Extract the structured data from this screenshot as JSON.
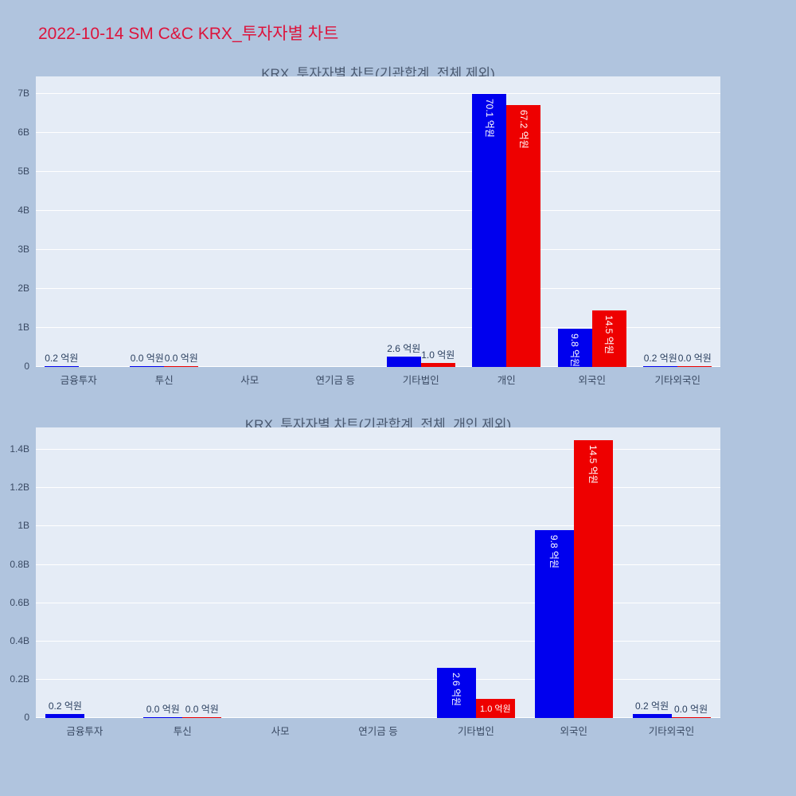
{
  "page": {
    "title": "2022-10-14 SM C&C KRX_투자자별 차트"
  },
  "colors": {
    "page_background": "#b0c4de",
    "plot_background": "#e5ecf6",
    "gridline": "#ffffff",
    "title": "#dc143c",
    "chart_title": "#4a5970",
    "axis_text": "#3a4a63",
    "bar_label_outside": "#2a3f5f",
    "bar_label_inside": "#ffffff",
    "series_blue": "#0000ee",
    "series_red": "#ee0000"
  },
  "chart_data": [
    {
      "type": "bar",
      "title": "KRX_투자자별 차트(기관합계_전체 제외)",
      "unit": "억원",
      "categories": [
        "금융투자",
        "투신",
        "사모",
        "연기금 등",
        "기타법인",
        "개인",
        "외국인",
        "기타외국인"
      ],
      "ytick_labels": [
        "0",
        "1B",
        "2B",
        "3B",
        "4B",
        "5B",
        "6B",
        "7B"
      ],
      "yticks_b": [
        0,
        1,
        2,
        3,
        4,
        5,
        6,
        7
      ],
      "ymax_b": 7.45,
      "grid": true,
      "legend": "none",
      "series": [
        {
          "name": "series-blue",
          "color": "#0000ee",
          "values_eok": [
            0.2,
            0.0,
            null,
            null,
            2.6,
            70.1,
            9.8,
            0.2
          ],
          "labels": [
            "0.2 억원",
            "0.0 억원",
            "",
            "",
            "2.6 억원",
            "70.1 억원",
            "9.8 억원",
            "0.2 억원"
          ],
          "label_pos": [
            "above",
            "above",
            "none",
            "none",
            "above",
            "inside-v",
            "inside-v",
            "above"
          ]
        },
        {
          "name": "series-red",
          "color": "#ee0000",
          "values_eok": [
            null,
            0.0,
            null,
            null,
            1.0,
            67.2,
            14.5,
            0.0
          ],
          "labels": [
            "",
            "0.0 억원",
            "",
            "",
            "1.0 억원",
            "67.2 억원",
            "14.5 억원",
            "0.0 억원"
          ],
          "label_pos": [
            "none",
            "above",
            "none",
            "none",
            "above",
            "inside-v",
            "inside-v",
            "above"
          ]
        }
      ]
    },
    {
      "type": "bar",
      "title": "KRX_투자자별 차트(기관합계_전체_개인 제외)",
      "unit": "억원",
      "categories": [
        "금융투자",
        "투신",
        "사모",
        "연기금 등",
        "기타법인",
        "외국인",
        "기타외국인"
      ],
      "ytick_labels": [
        "0",
        "0.2B",
        "0.4B",
        "0.6B",
        "0.8B",
        "1B",
        "1.2B",
        "1.4B"
      ],
      "yticks_b": [
        0,
        0.2,
        0.4,
        0.6,
        0.8,
        1.0,
        1.2,
        1.4
      ],
      "ymax_b": 1.517,
      "grid": true,
      "legend": "none",
      "series": [
        {
          "name": "series-blue",
          "color": "#0000ee",
          "values_eok": [
            0.2,
            0.0,
            null,
            null,
            2.6,
            9.8,
            0.2
          ],
          "labels": [
            "0.2 억원",
            "0.0 억원",
            "",
            "",
            "2.6 억원",
            "9.8 억원",
            "0.2 억원"
          ],
          "label_pos": [
            "above",
            "above",
            "none",
            "none",
            "inside-v",
            "inside-v",
            "above"
          ]
        },
        {
          "name": "series-red",
          "color": "#ee0000",
          "values_eok": [
            null,
            0.0,
            null,
            null,
            1.0,
            14.5,
            0.0
          ],
          "labels": [
            "",
            "0.0 억원",
            "",
            "",
            "1.0 억원",
            "14.5 억원",
            "0.0 억원"
          ],
          "label_pos": [
            "none",
            "above",
            "none",
            "none",
            "inside-h",
            "inside-v",
            "above"
          ]
        }
      ]
    }
  ]
}
